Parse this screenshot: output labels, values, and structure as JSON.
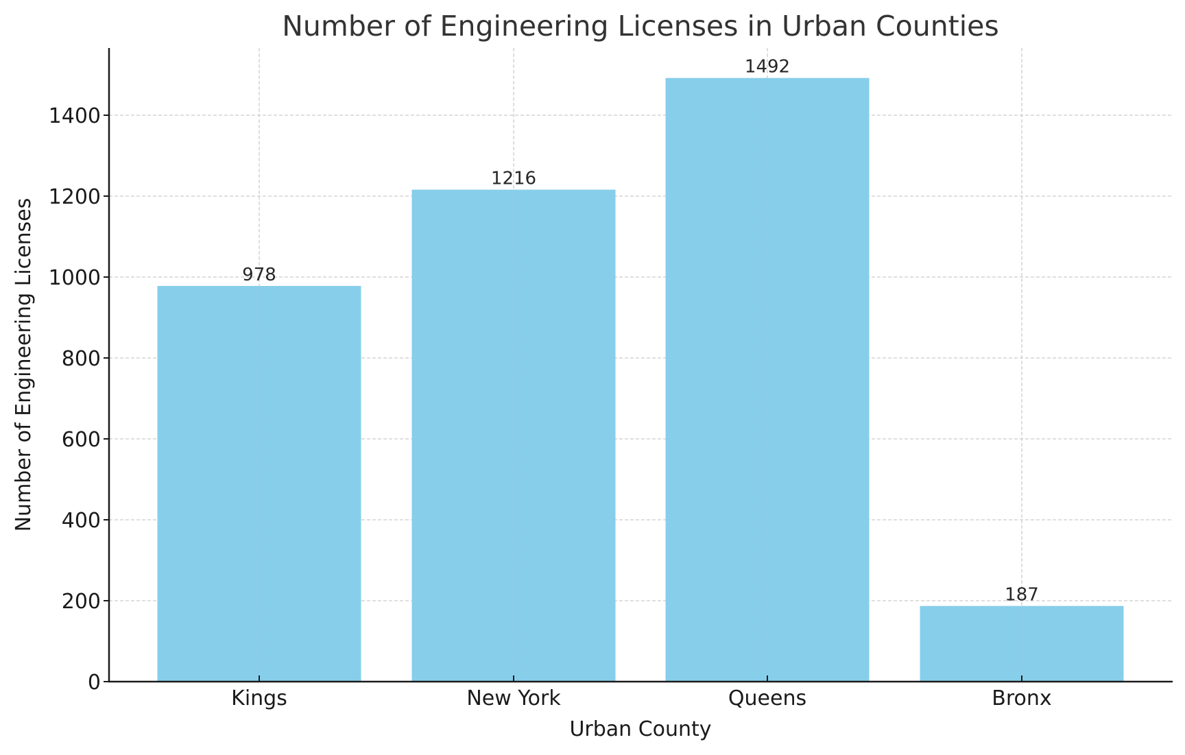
{
  "chart_data": {
    "type": "bar",
    "title": "Number of Engineering Licenses in Urban Counties",
    "xlabel": "Urban County",
    "ylabel": "Number of Engineering Licenses",
    "categories": [
      "Kings",
      "New York",
      "Queens",
      "Bronx"
    ],
    "values": [
      978,
      1216,
      1492,
      187
    ],
    "data_labels": [
      "978",
      "1216",
      "1492",
      "187"
    ],
    "ylim": [
      0,
      1566
    ],
    "yticks": [
      0,
      200,
      400,
      600,
      800,
      1000,
      1200,
      1400
    ],
    "ytick_labels": [
      "0",
      "200",
      "400",
      "600",
      "800",
      "1000",
      "1200",
      "1400"
    ],
    "grid": true,
    "grid_style": "dashed",
    "legend": null,
    "bar_color": "#87CEEB"
  },
  "colors": {
    "bar": "#87CEEB",
    "grid": "#cccccc",
    "axis": "#1a1a1a",
    "background": "#ffffff"
  }
}
